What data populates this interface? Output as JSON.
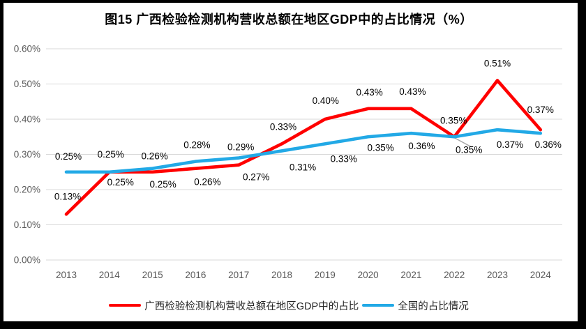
{
  "chart_data": {
    "type": "line",
    "title": "图15 广西检验检测机构营收总额在地区GDP中的占比情况（%）",
    "categories": [
      "2013",
      "2014",
      "2015",
      "2016",
      "2017",
      "2018",
      "2019",
      "2020",
      "2021",
      "2022",
      "2023",
      "2024"
    ],
    "y_axis": {
      "ticks": [
        "0.00%",
        "0.10%",
        "0.20%",
        "0.30%",
        "0.40%",
        "0.50%",
        "0.60%"
      ],
      "min": 0,
      "max": 0.6
    },
    "grid": "horizontal",
    "legend_position": "bottom",
    "series": [
      {
        "name": "广西检验检测机构营收总额在地区GDP中的占比",
        "color": "#FF0000",
        "values": [
          0.13,
          0.25,
          0.25,
          0.26,
          0.27,
          0.33,
          0.4,
          0.43,
          0.43,
          0.35,
          0.51,
          0.37
        ],
        "data_labels": [
          "0.13%",
          "0.25%",
          "0.25%",
          "0.26%",
          "0.27%",
          "0.33%",
          "0.40%",
          "0.43%",
          "0.43%",
          "0.35%",
          "0.51%",
          "0.37%"
        ]
      },
      {
        "name": "全国的占比情况",
        "color": "#22A9E6",
        "values": [
          0.25,
          0.25,
          0.26,
          0.28,
          0.29,
          0.31,
          0.33,
          0.35,
          0.36,
          0.35,
          0.37,
          0.36
        ],
        "data_labels": [
          "0.25%",
          "0.25%",
          "0.26%",
          "0.28%",
          "0.29%",
          "0.31%",
          "0.33%",
          "0.35%",
          "0.36%",
          "0.35%",
          "0.37%",
          "0.36%"
        ]
      }
    ],
    "colors": {
      "gridline": "#D9D9D9",
      "tick_text": "#595959",
      "data_label": "#000000",
      "leader_line": "#A6A6A6",
      "frame_border": "#000000"
    }
  }
}
